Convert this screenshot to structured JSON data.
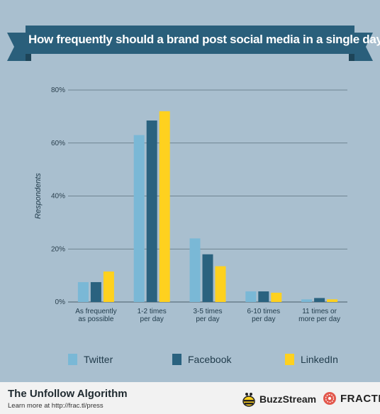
{
  "chart_data": {
    "type": "bar",
    "title": "How frequently should a brand post social media in a single day?",
    "ylabel": "Respondents",
    "xlabel": "",
    "ylim": [
      0,
      80
    ],
    "yticks": [
      0,
      20,
      40,
      60,
      80
    ],
    "ytick_labels": [
      "0%",
      "20%",
      "40%",
      "60%",
      "80%"
    ],
    "grid": true,
    "legend_position": "bottom",
    "categories": [
      [
        "As frequently",
        "as possible"
      ],
      [
        "1-2 times",
        "per day"
      ],
      [
        "3-5 times",
        "per day"
      ],
      [
        "6-10 times",
        "per day"
      ],
      [
        "11 times or",
        "more per day"
      ]
    ],
    "series": [
      {
        "name": "Twitter",
        "color": "#7ab8d6",
        "values": [
          7.5,
          63,
          24,
          4,
          1
        ]
      },
      {
        "name": "Facebook",
        "color": "#2a627f",
        "values": [
          7.5,
          68.5,
          18,
          4,
          1.5
        ]
      },
      {
        "name": "LinkedIn",
        "color": "#fed11f",
        "values": [
          11.5,
          72,
          13.5,
          3.5,
          1
        ]
      }
    ]
  },
  "footer": {
    "title": "The Unfollow Algorithm",
    "subtitle": "Learn more at http://frac.tl/press",
    "brand1": "BuzzStream",
    "brand2": "FRACTL"
  },
  "colors": {
    "background": "#a9bfcf",
    "banner": "#2a5f7b",
    "banner_fold": "#1d4458",
    "grid": "#5d707d"
  }
}
